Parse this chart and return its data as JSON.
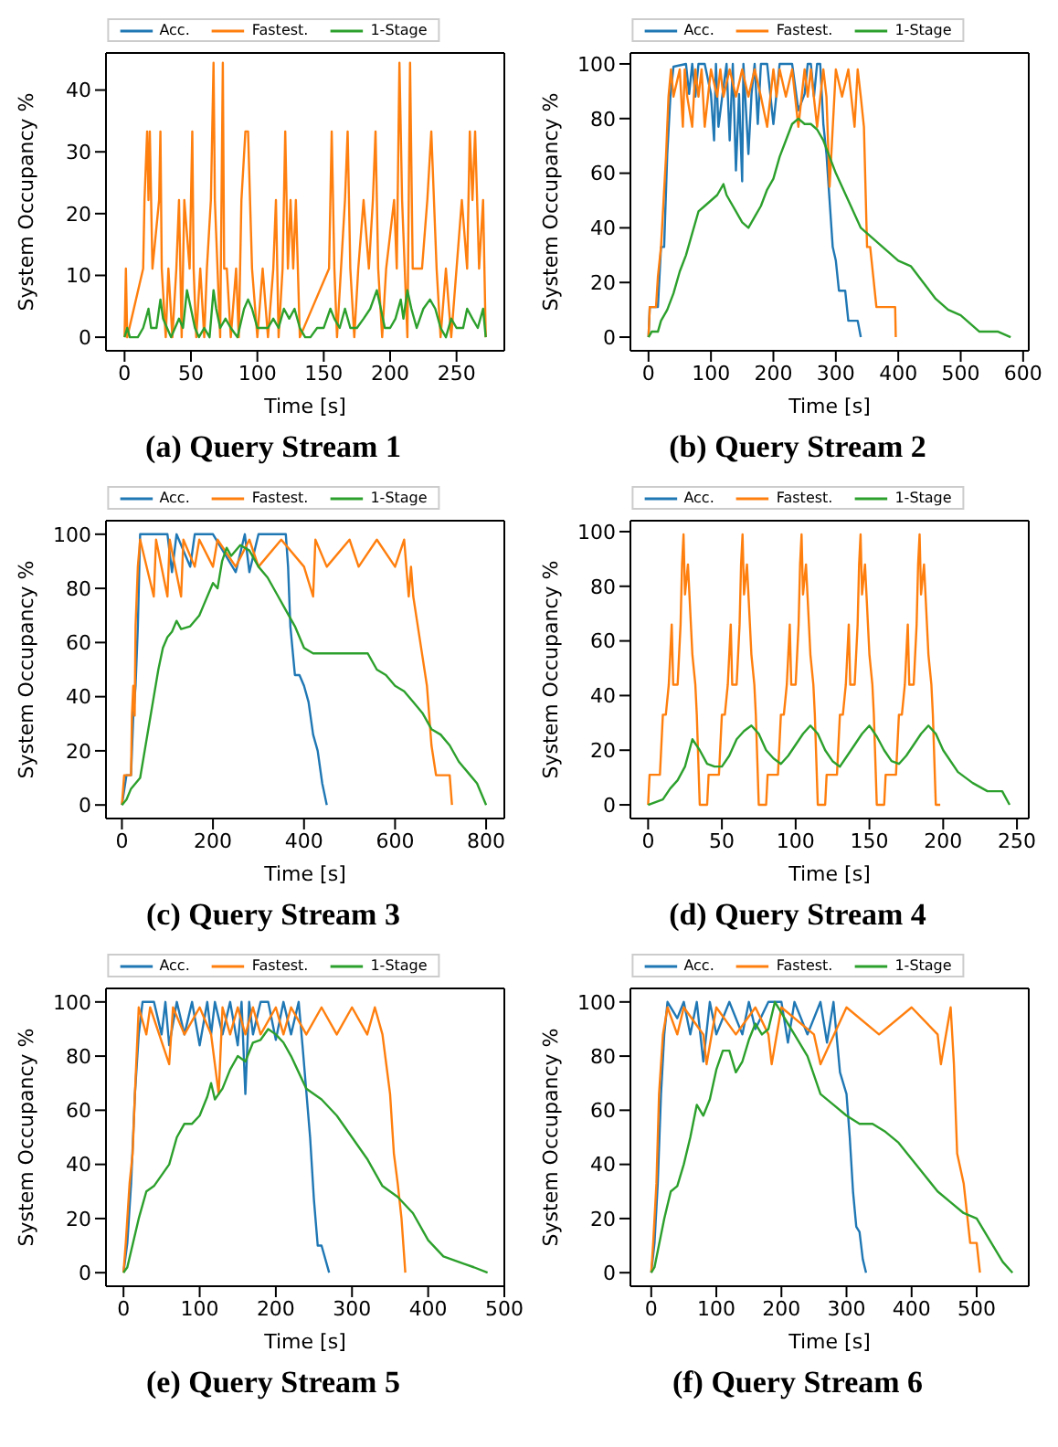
{
  "chart_data": [
    {
      "type": "line",
      "title": "(a) Query Stream 1",
      "xlabel": "Time [s]",
      "ylabel": "System Occupancy %",
      "legend": "top",
      "xlim": [
        -14,
        286
      ],
      "xticks": [
        0,
        50,
        100,
        150,
        200,
        250
      ],
      "ylim": [
        -2.2,
        46
      ],
      "yticks": [
        0,
        10,
        20,
        30,
        40
      ],
      "series": [
        {
          "name": "Acc.",
          "color": "#1f77b4"
        },
        {
          "name": "Fastest.",
          "color": "#ff7f0e",
          "x": [
            0,
            1,
            2,
            14,
            15,
            17,
            18,
            19,
            21,
            26,
            27,
            28,
            31,
            33,
            36,
            39,
            41,
            43,
            45,
            49,
            51,
            52,
            54,
            57,
            60,
            62,
            65,
            67,
            68,
            70,
            72,
            74,
            75,
            77,
            80,
            84,
            86,
            88,
            91,
            93,
            96,
            100,
            104,
            108,
            112,
            114,
            116,
            119,
            121,
            123,
            125,
            127,
            129,
            132,
            154,
            156,
            158,
            160,
            163,
            166,
            168,
            170,
            173,
            176,
            180,
            184,
            187,
            189,
            191,
            194,
            197,
            203,
            205,
            207,
            209,
            211,
            213,
            215,
            217,
            224,
            228,
            231,
            233,
            235,
            238,
            242,
            246,
            250,
            254,
            258,
            260,
            262,
            264,
            267,
            270,
            272
          ],
          "values": [
            0,
            11.1,
            0,
            11.1,
            22.2,
            33.3,
            22.2,
            33.3,
            11.1,
            22.2,
            33.3,
            11.1,
            0,
            11.1,
            0,
            11.1,
            22.2,
            0,
            22.2,
            11.1,
            33.3,
            11.1,
            0,
            11.1,
            0,
            11.1,
            22.2,
            44.4,
            22.2,
            11.1,
            0,
            44.4,
            11.1,
            11.1,
            0,
            11.1,
            0,
            22.2,
            33.3,
            33.3,
            11.1,
            0,
            11.1,
            0,
            11.1,
            22.2,
            0,
            11.1,
            33.3,
            11.1,
            22.2,
            11.1,
            22.2,
            0,
            11.1,
            33.3,
            11.1,
            0,
            11.1,
            22.2,
            33.3,
            11.1,
            0,
            11.1,
            22.2,
            11.1,
            22.2,
            33.3,
            11.1,
            0,
            11.1,
            22.2,
            11.1,
            44.4,
            22.2,
            11.1,
            0,
            44.4,
            11.1,
            11.1,
            22.2,
            33.3,
            22.2,
            11.1,
            0,
            11.1,
            0,
            11.1,
            22.2,
            11.1,
            33.3,
            22.2,
            33.3,
            11.1,
            22.2,
            0
          ]
        },
        {
          "name": "1-Stage",
          "color": "#2ca02c",
          "x": [
            0,
            2,
            4,
            10,
            14,
            16,
            18,
            20,
            24,
            27,
            29,
            32,
            35,
            38,
            41,
            44,
            47,
            50,
            53,
            56,
            60,
            64,
            67,
            69,
            72,
            76,
            80,
            85,
            90,
            93,
            96,
            100,
            104,
            108,
            112,
            116,
            120,
            124,
            128,
            132,
            136,
            140,
            145,
            150,
            155,
            158,
            162,
            166,
            170,
            175,
            180,
            185,
            190,
            193,
            196,
            200,
            204,
            208,
            210,
            213,
            216,
            220,
            225,
            230,
            234,
            238,
            242,
            246,
            250,
            255,
            258,
            262,
            266,
            270,
            272
          ],
          "values": [
            0,
            1.5,
            0,
            0,
            1.5,
            3,
            4.6,
            1.5,
            1.5,
            6.1,
            3,
            1.5,
            0,
            1.5,
            3,
            1.5,
            7.6,
            4.6,
            1.5,
            0,
            1.5,
            0,
            7.6,
            4.6,
            1.5,
            3,
            1.5,
            0,
            4.6,
            6.1,
            4.6,
            1.5,
            1.5,
            1.5,
            3,
            1.5,
            4.6,
            3,
            4.6,
            1.5,
            0,
            0,
            1.5,
            1.5,
            4.6,
            3,
            1.5,
            4.6,
            1.5,
            1.5,
            3,
            4.6,
            7.6,
            4.6,
            1.5,
            1.5,
            3,
            6.1,
            3,
            7.6,
            4.6,
            1.5,
            4.6,
            6.1,
            4.6,
            1.5,
            0,
            3,
            1.5,
            1.5,
            4.6,
            3,
            1.5,
            4.6,
            0
          ]
        }
      ]
    },
    {
      "type": "line",
      "title": "(b) Query Stream 2",
      "xlabel": "Time [s]",
      "ylabel": "System Occupancy %",
      "legend": "top",
      "xlim": [
        -29,
        609
      ],
      "xticks": [
        0,
        100,
        200,
        300,
        400,
        500,
        600
      ],
      "ylim": [
        -5,
        104
      ],
      "yticks": [
        0,
        20,
        40,
        60,
        80,
        100
      ],
      "series": [
        {
          "name": "Acc.",
          "color": "#1f77b4",
          "x": [
            0,
            2,
            15,
            20,
            25,
            30,
            35,
            40,
            60,
            65,
            70,
            75,
            80,
            90,
            100,
            105,
            108,
            112,
            118,
            125,
            130,
            135,
            140,
            145,
            150,
            152,
            160,
            165,
            170,
            175,
            180,
            190,
            200,
            210,
            220,
            230,
            240,
            250,
            255,
            260,
            265,
            270,
            275,
            280,
            285,
            290,
            295,
            300,
            305,
            310,
            315,
            320,
            330,
            335,
            340
          ],
          "values": [
            0,
            11,
            11,
            33,
            33,
            67,
            88,
            99,
            100,
            89,
            100,
            88,
            100,
            100,
            89,
            72,
            100,
            77,
            88,
            100,
            72,
            100,
            61,
            89,
            57,
            100,
            67,
            89,
            100,
            78,
            100,
            100,
            78,
            100,
            100,
            100,
            83,
            89,
            100,
            100,
            88,
            100,
            100,
            78,
            67,
            50,
            33,
            28,
            17,
            17,
            17,
            6,
            6,
            6,
            0
          ]
        },
        {
          "name": "Fastest.",
          "color": "#ff7f0e",
          "x": [
            0,
            2,
            12,
            15,
            20,
            28,
            32,
            36,
            40,
            50,
            55,
            58,
            62,
            70,
            75,
            80,
            85,
            90,
            100,
            110,
            115,
            120,
            130,
            140,
            150,
            160,
            170,
            180,
            190,
            200,
            205,
            210,
            220,
            230,
            240,
            250,
            255,
            260,
            270,
            280,
            285,
            290,
            300,
            310,
            320,
            330,
            335,
            340,
            345,
            350,
            355,
            360,
            365,
            370,
            395,
            396
          ],
          "values": [
            0,
            11,
            11,
            22,
            33,
            66,
            88,
            98,
            88,
            98,
            77,
            98,
            88,
            77,
            98,
            88,
            98,
            77,
            98,
            88,
            98,
            88,
            98,
            88,
            98,
            88,
            98,
            88,
            77,
            98,
            88,
            98,
            88,
            98,
            77,
            98,
            88,
            98,
            77,
            98,
            88,
            55,
            98,
            88,
            98,
            77,
            98,
            88,
            77,
            33,
            33,
            22,
            11,
            11,
            11,
            0
          ]
        },
        {
          "name": "1-Stage",
          "color": "#2ca02c",
          "x": [
            0,
            5,
            15,
            20,
            30,
            40,
            50,
            60,
            70,
            80,
            90,
            100,
            110,
            120,
            125,
            130,
            140,
            150,
            160,
            170,
            180,
            190,
            200,
            210,
            220,
            230,
            240,
            250,
            260,
            270,
            280,
            290,
            300,
            320,
            340,
            360,
            380,
            400,
            420,
            440,
            460,
            480,
            500,
            530,
            560,
            580
          ],
          "values": [
            0,
            2,
            2,
            6,
            10,
            16,
            24,
            30,
            38,
            46,
            48,
            50,
            52,
            56,
            52,
            50,
            46,
            42,
            40,
            44,
            48,
            54,
            58,
            66,
            72,
            78,
            80,
            78,
            78,
            76,
            72,
            66,
            60,
            50,
            40,
            36,
            32,
            28,
            26,
            20,
            14,
            10,
            8,
            2,
            2,
            0
          ]
        }
      ]
    },
    {
      "type": "line",
      "title": "(c) Query Stream 3",
      "xlabel": "Time [s]",
      "ylabel": "System Occupancy %",
      "legend": "top",
      "xlim": [
        -35,
        840
      ],
      "xticks": [
        0,
        200,
        400,
        600,
        800
      ],
      "ylim": [
        -5,
        105
      ],
      "yticks": [
        0,
        20,
        40,
        60,
        80,
        100
      ],
      "series": [
        {
          "name": "Acc.",
          "color": "#1f77b4",
          "x": [
            0,
            10,
            20,
            25,
            30,
            35,
            40,
            100,
            110,
            120,
            150,
            160,
            200,
            250,
            270,
            280,
            300,
            320,
            360,
            365,
            370,
            380,
            390,
            400,
            410,
            420,
            430,
            440,
            450
          ],
          "values": [
            0,
            11,
            11,
            33,
            44,
            66,
            100,
            100,
            86,
            100,
            88,
            100,
            100,
            86,
            100,
            86,
            100,
            100,
            100,
            88,
            66,
            48,
            48,
            44,
            38,
            26,
            20,
            8,
            0
          ]
        },
        {
          "name": "Fastest.",
          "color": "#ff7f0e",
          "x": [
            0,
            5,
            20,
            22,
            25,
            28,
            30,
            35,
            40,
            70,
            75,
            100,
            105,
            130,
            135,
            160,
            170,
            200,
            210,
            250,
            280,
            300,
            350,
            400,
            420,
            425,
            450,
            500,
            520,
            560,
            600,
            620,
            630,
            635,
            640,
            650,
            660,
            670,
            680,
            690,
            700,
            720,
            725
          ],
          "values": [
            0,
            11,
            11,
            33,
            44,
            33,
            66,
            88,
            98,
            77,
            98,
            77,
            98,
            77,
            98,
            88,
            98,
            88,
            98,
            88,
            98,
            88,
            98,
            88,
            77,
            98,
            88,
            98,
            88,
            98,
            88,
            98,
            77,
            88,
            77,
            66,
            55,
            44,
            22,
            11,
            11,
            11,
            0
          ]
        },
        {
          "name": "1-Stage",
          "color": "#2ca02c",
          "x": [
            0,
            10,
            20,
            40,
            50,
            60,
            70,
            80,
            90,
            100,
            110,
            120,
            130,
            150,
            170,
            180,
            200,
            210,
            220,
            230,
            240,
            260,
            280,
            300,
            320,
            340,
            360,
            380,
            400,
            420,
            450,
            500,
            540,
            560,
            580,
            600,
            620,
            640,
            660,
            680,
            700,
            720,
            740,
            760,
            780,
            800
          ],
          "values": [
            0,
            2,
            6,
            10,
            20,
            30,
            40,
            50,
            58,
            62,
            64,
            68,
            65,
            66,
            70,
            74,
            82,
            80,
            90,
            95,
            92,
            96,
            94,
            88,
            84,
            78,
            72,
            66,
            58,
            56,
            56,
            56,
            56,
            50,
            48,
            44,
            42,
            38,
            34,
            28,
            26,
            22,
            16,
            12,
            8,
            0
          ]
        }
      ]
    },
    {
      "type": "line",
      "title": "(d) Query Stream 4",
      "xlabel": "Time [s]",
      "ylabel": "System Occupancy %",
      "legend": "top",
      "xlim": [
        -12,
        258
      ],
      "xticks": [
        0,
        50,
        100,
        150,
        200,
        250
      ],
      "ylim": [
        -5,
        104
      ],
      "yticks": [
        0,
        20,
        40,
        60,
        80,
        100
      ],
      "series": [
        {
          "name": "Acc.",
          "color": "#1f77b4"
        },
        {
          "name": "Fastest.",
          "color": "#ff7f0e",
          "x": [
            0,
            1,
            8,
            10,
            12,
            14,
            16,
            17,
            20,
            22,
            23,
            24,
            25,
            27,
            28,
            30,
            32,
            33,
            35,
            38,
            40,
            41,
            48,
            50,
            52,
            54,
            56,
            57,
            60,
            62,
            63,
            64,
            65,
            67,
            68,
            70,
            72,
            73,
            75,
            78,
            80,
            81,
            88,
            90,
            92,
            94,
            96,
            97,
            100,
            102,
            103,
            104,
            105,
            107,
            108,
            110,
            112,
            113,
            115,
            118,
            120,
            121,
            128,
            130,
            132,
            134,
            136,
            137,
            140,
            142,
            143,
            144,
            145,
            147,
            148,
            150,
            152,
            153,
            155,
            158,
            160,
            161,
            168,
            170,
            172,
            174,
            176,
            177,
            180,
            182,
            183,
            184,
            185,
            187,
            188,
            190,
            192,
            193,
            195,
            198
          ],
          "values": [
            0,
            11,
            11,
            33,
            33,
            44,
            66,
            44,
            44,
            66,
            88,
            99,
            77,
            88,
            77,
            55,
            44,
            33,
            0,
            0,
            0,
            11,
            11,
            33,
            33,
            44,
            66,
            44,
            44,
            66,
            88,
            99,
            77,
            88,
            77,
            55,
            44,
            33,
            0,
            0,
            0,
            11,
            11,
            33,
            33,
            44,
            66,
            44,
            44,
            66,
            88,
            99,
            77,
            88,
            77,
            55,
            44,
            33,
            0,
            0,
            0,
            11,
            11,
            33,
            33,
            44,
            66,
            44,
            44,
            66,
            88,
            99,
            77,
            88,
            77,
            55,
            44,
            33,
            0,
            0,
            0,
            11,
            11,
            33,
            33,
            44,
            66,
            44,
            44,
            66,
            88,
            99,
            77,
            88,
            77,
            55,
            44,
            33,
            0,
            0
          ]
        },
        {
          "name": "1-Stage",
          "color": "#2ca02c",
          "x": [
            0,
            10,
            15,
            20,
            25,
            28,
            30,
            35,
            40,
            45,
            50,
            55,
            60,
            65,
            70,
            75,
            80,
            85,
            90,
            95,
            100,
            105,
            110,
            115,
            120,
            125,
            130,
            135,
            140,
            145,
            150,
            155,
            160,
            165,
            170,
            175,
            180,
            185,
            190,
            195,
            200,
            210,
            220,
            230,
            240,
            245
          ],
          "values": [
            0,
            2,
            6,
            9,
            14,
            20,
            24,
            20,
            15,
            14,
            14,
            18,
            24,
            27,
            29,
            26,
            20,
            17,
            15,
            18,
            22,
            26,
            29,
            26,
            20,
            16,
            14,
            18,
            22,
            26,
            29,
            25,
            20,
            16,
            15,
            18,
            22,
            26,
            29,
            26,
            20,
            12,
            8,
            5,
            5,
            0
          ]
        }
      ]
    },
    {
      "type": "line",
      "title": "(e) Query Stream 5",
      "xlabel": "Time [s]",
      "ylabel": "System Occupancy %",
      "legend": "top",
      "xlim": [
        -23,
        500
      ],
      "xticks": [
        0,
        100,
        200,
        300,
        400,
        500
      ],
      "ylim": [
        -5,
        105
      ],
      "yticks": [
        0,
        20,
        40,
        60,
        80,
        100
      ],
      "series": [
        {
          "name": "Acc.",
          "color": "#1f77b4",
          "x": [
            0,
            5,
            10,
            15,
            20,
            25,
            40,
            50,
            55,
            60,
            70,
            80,
            90,
            100,
            110,
            115,
            120,
            130,
            140,
            150,
            155,
            160,
            165,
            170,
            180,
            190,
            200,
            210,
            220,
            230,
            235,
            240,
            245,
            250,
            255,
            260,
            270
          ],
          "values": [
            0,
            11,
            33,
            66,
            88,
            100,
            100,
            88,
            100,
            84,
            100,
            88,
            100,
            84,
            100,
            88,
            100,
            88,
            100,
            84,
            100,
            66,
            100,
            88,
            100,
            100,
            86,
            100,
            88,
            100,
            84,
            67,
            50,
            27,
            10,
            10,
            0
          ]
        },
        {
          "name": "Fastest.",
          "color": "#ff7f0e",
          "x": [
            0,
            3,
            8,
            12,
            15,
            20,
            30,
            35,
            60,
            65,
            80,
            100,
            115,
            120,
            125,
            130,
            140,
            150,
            160,
            170,
            180,
            200,
            210,
            220,
            240,
            260,
            280,
            300,
            320,
            330,
            340,
            345,
            350,
            355,
            360,
            365,
            370
          ],
          "values": [
            0,
            11,
            33,
            44,
            66,
            98,
            88,
            98,
            77,
            98,
            88,
            98,
            88,
            77,
            66,
            98,
            88,
            98,
            88,
            98,
            88,
            98,
            88,
            98,
            88,
            98,
            88,
            98,
            88,
            98,
            88,
            77,
            66,
            44,
            33,
            20,
            0
          ]
        },
        {
          "name": "1-Stage",
          "color": "#2ca02c",
          "x": [
            0,
            5,
            10,
            20,
            30,
            40,
            60,
            70,
            80,
            90,
            100,
            110,
            115,
            120,
            130,
            140,
            150,
            160,
            170,
            180,
            190,
            200,
            210,
            220,
            230,
            240,
            260,
            280,
            300,
            320,
            340,
            360,
            380,
            400,
            420,
            440,
            460,
            478
          ],
          "values": [
            0,
            2,
            8,
            20,
            30,
            32,
            40,
            50,
            55,
            55,
            58,
            65,
            70,
            64,
            68,
            75,
            80,
            78,
            85,
            86,
            90,
            88,
            85,
            80,
            74,
            68,
            64,
            58,
            50,
            42,
            32,
            28,
            22,
            12,
            6,
            4,
            2,
            0
          ]
        }
      ]
    },
    {
      "type": "line",
      "title": "(f) Query Stream 6",
      "xlabel": "Time [s]",
      "ylabel": "System Occupancy %",
      "legend": "top",
      "xlim": [
        -32,
        580
      ],
      "xticks": [
        0,
        100,
        200,
        300,
        400,
        500
      ],
      "ylim": [
        -5,
        105
      ],
      "yticks": [
        0,
        20,
        40,
        60,
        80,
        100
      ],
      "series": [
        {
          "name": "Acc.",
          "color": "#1f77b4",
          "x": [
            0,
            5,
            10,
            15,
            20,
            25,
            40,
            50,
            60,
            70,
            80,
            90,
            100,
            120,
            140,
            150,
            160,
            180,
            200,
            210,
            220,
            240,
            260,
            270,
            280,
            290,
            300,
            305,
            310,
            315,
            320,
            325,
            330
          ],
          "values": [
            0,
            11,
            33,
            66,
            88,
            100,
            94,
            100,
            88,
            100,
            78,
            100,
            88,
            100,
            88,
            100,
            90,
            100,
            100,
            85,
            100,
            88,
            100,
            85,
            100,
            74,
            66,
            50,
            30,
            17,
            15,
            5,
            0
          ]
        },
        {
          "name": "Fastest.",
          "color": "#ff7f0e",
          "x": [
            0,
            3,
            8,
            12,
            18,
            25,
            40,
            50,
            80,
            85,
            100,
            130,
            160,
            180,
            185,
            200,
            250,
            260,
            300,
            350,
            400,
            440,
            445,
            460,
            465,
            470,
            480,
            485,
            490,
            495,
            500,
            505
          ],
          "values": [
            0,
            11,
            33,
            66,
            88,
            98,
            88,
            98,
            88,
            77,
            98,
            88,
            98,
            88,
            77,
            98,
            88,
            77,
            98,
            88,
            98,
            88,
            77,
            98,
            77,
            44,
            33,
            22,
            11,
            11,
            11,
            0
          ]
        },
        {
          "name": "1-Stage",
          "color": "#2ca02c",
          "x": [
            0,
            5,
            10,
            20,
            30,
            40,
            50,
            60,
            70,
            80,
            90,
            100,
            110,
            120,
            130,
            140,
            150,
            160,
            170,
            180,
            190,
            200,
            210,
            220,
            240,
            260,
            280,
            300,
            320,
            340,
            360,
            380,
            400,
            420,
            440,
            460,
            480,
            500,
            520,
            540,
            555
          ],
          "values": [
            0,
            2,
            8,
            20,
            30,
            32,
            40,
            50,
            62,
            58,
            64,
            75,
            82,
            82,
            74,
            78,
            86,
            92,
            88,
            90,
            100,
            96,
            92,
            88,
            80,
            66,
            62,
            58,
            55,
            55,
            52,
            48,
            42,
            36,
            30,
            26,
            22,
            20,
            12,
            4,
            0
          ]
        }
      ]
    }
  ]
}
